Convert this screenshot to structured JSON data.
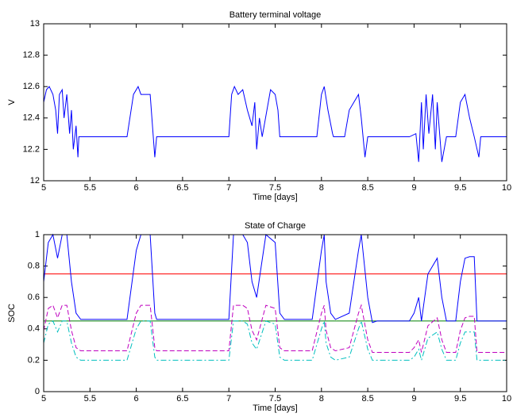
{
  "chart_data": [
    {
      "type": "line",
      "title": "Battery terminal voltage",
      "xlabel": "Time [days]",
      "ylabel": "V",
      "xlim": [
        5,
        10
      ],
      "xticks": [
        5,
        5.5,
        6,
        6.5,
        7,
        7.5,
        8,
        8.5,
        9,
        9.5,
        10
      ],
      "ylim": [
        12,
        13
      ],
      "yticks": [
        12,
        12.2,
        12.4,
        12.6,
        12.8,
        13
      ],
      "grid": false,
      "x": [
        5.0,
        5.03,
        5.06,
        5.1,
        5.13,
        5.15,
        5.17,
        5.2,
        5.22,
        5.25,
        5.28,
        5.3,
        5.32,
        5.35,
        5.37,
        5.38,
        5.9,
        5.97,
        6.02,
        6.05,
        6.15,
        6.2,
        6.22,
        7.0,
        7.03,
        7.06,
        7.1,
        7.15,
        7.2,
        7.25,
        7.28,
        7.3,
        7.33,
        7.36,
        7.45,
        7.5,
        7.53,
        7.55,
        7.95,
        8.0,
        8.03,
        8.07,
        8.12,
        8.13,
        8.25,
        8.3,
        8.35,
        8.4,
        8.43,
        8.47,
        8.5,
        8.95,
        9.02,
        9.05,
        9.08,
        9.1,
        9.13,
        9.16,
        9.2,
        9.23,
        9.25,
        9.3,
        9.35,
        9.45,
        9.5,
        9.55,
        9.6,
        9.65,
        9.7,
        9.72,
        10
      ],
      "series": [
        {
          "color": "#0000ff",
          "dash": "solid",
          "values": [
            12.5,
            12.58,
            12.6,
            12.55,
            12.45,
            12.3,
            12.55,
            12.58,
            12.4,
            12.55,
            12.3,
            12.45,
            12.2,
            12.35,
            12.15,
            12.28,
            12.28,
            12.55,
            12.6,
            12.55,
            12.55,
            12.15,
            12.28,
            12.28,
            12.55,
            12.6,
            12.55,
            12.58,
            12.45,
            12.35,
            12.5,
            12.2,
            12.4,
            12.28,
            12.58,
            12.55,
            12.45,
            12.28,
            12.28,
            12.55,
            12.6,
            12.45,
            12.3,
            12.28,
            12.28,
            12.45,
            12.5,
            12.55,
            12.4,
            12.15,
            12.28,
            12.28,
            12.3,
            12.12,
            12.5,
            12.2,
            12.55,
            12.3,
            12.55,
            12.2,
            12.5,
            12.12,
            12.28,
            12.28,
            12.5,
            12.55,
            12.4,
            12.28,
            12.15,
            12.28,
            12.28
          ]
        }
      ]
    },
    {
      "type": "line",
      "title": "State of Charge",
      "xlabel": "Time [days]",
      "ylabel": "SOC",
      "xlim": [
        5,
        10
      ],
      "xticks": [
        5,
        5.5,
        6,
        6.5,
        7,
        7.5,
        8,
        8.5,
        9,
        9.5,
        10
      ],
      "ylim": [
        0,
        1
      ],
      "yticks": [
        0,
        0.2,
        0.4,
        0.6,
        0.8,
        1
      ],
      "grid": false,
      "x": [
        5.0,
        5.05,
        5.1,
        5.15,
        5.2,
        5.25,
        5.3,
        5.35,
        5.4,
        5.9,
        6.0,
        6.05,
        6.15,
        6.2,
        6.22,
        7.0,
        7.05,
        7.15,
        7.2,
        7.25,
        7.3,
        7.35,
        7.4,
        7.5,
        7.55,
        7.6,
        7.9,
        8.0,
        8.03,
        8.05,
        8.1,
        8.15,
        8.3,
        8.4,
        8.43,
        8.5,
        8.55,
        8.6,
        8.95,
        9.0,
        9.05,
        9.08,
        9.15,
        9.25,
        9.3,
        9.35,
        9.45,
        9.5,
        9.55,
        9.6,
        9.65,
        9.68,
        10
      ],
      "series": [
        {
          "color": "#ff0000",
          "dash": "solid",
          "x": [
            5,
            10
          ],
          "values": [
            0.75,
            0.75
          ]
        },
        {
          "color": "#008000",
          "dash": "solid",
          "x": [
            5,
            10
          ],
          "values": [
            0.45,
            0.45
          ]
        },
        {
          "color": "#bf00bf",
          "dash": "dashed",
          "values": [
            0.39,
            0.53,
            0.55,
            0.47,
            0.55,
            0.55,
            0.39,
            0.28,
            0.26,
            0.26,
            0.5,
            0.55,
            0.55,
            0.28,
            0.26,
            0.26,
            0.55,
            0.55,
            0.53,
            0.39,
            0.33,
            0.44,
            0.55,
            0.53,
            0.28,
            0.26,
            0.26,
            0.5,
            0.55,
            0.39,
            0.28,
            0.26,
            0.28,
            0.5,
            0.55,
            0.33,
            0.25,
            0.25,
            0.25,
            0.28,
            0.33,
            0.25,
            0.42,
            0.47,
            0.33,
            0.25,
            0.25,
            0.39,
            0.47,
            0.48,
            0.48,
            0.25,
            0.25
          ]
        },
        {
          "color": "#00bfbf",
          "dash": "dashdot",
          "values": [
            0.31,
            0.43,
            0.45,
            0.38,
            0.45,
            0.45,
            0.31,
            0.22,
            0.2,
            0.2,
            0.4,
            0.45,
            0.45,
            0.22,
            0.2,
            0.2,
            0.45,
            0.45,
            0.43,
            0.31,
            0.27,
            0.36,
            0.45,
            0.43,
            0.22,
            0.2,
            0.2,
            0.4,
            0.45,
            0.31,
            0.22,
            0.2,
            0.22,
            0.4,
            0.45,
            0.27,
            0.2,
            0.2,
            0.2,
            0.22,
            0.27,
            0.2,
            0.34,
            0.38,
            0.27,
            0.2,
            0.2,
            0.31,
            0.38,
            0.38,
            0.38,
            0.2,
            0.2
          ]
        },
        {
          "color": "#0000ff",
          "dash": "solid",
          "values": [
            0.7,
            0.95,
            1.0,
            0.85,
            1.0,
            1.0,
            0.7,
            0.5,
            0.46,
            0.46,
            0.9,
            1.0,
            1.0,
            0.5,
            0.46,
            0.46,
            1.0,
            1.0,
            0.95,
            0.7,
            0.6,
            0.8,
            1.0,
            0.95,
            0.5,
            0.46,
            0.46,
            0.9,
            1.0,
            0.7,
            0.5,
            0.46,
            0.5,
            0.9,
            1.0,
            0.6,
            0.44,
            0.45,
            0.45,
            0.5,
            0.6,
            0.45,
            0.75,
            0.85,
            0.6,
            0.45,
            0.45,
            0.7,
            0.85,
            0.86,
            0.86,
            0.45,
            0.45
          ]
        }
      ]
    }
  ]
}
